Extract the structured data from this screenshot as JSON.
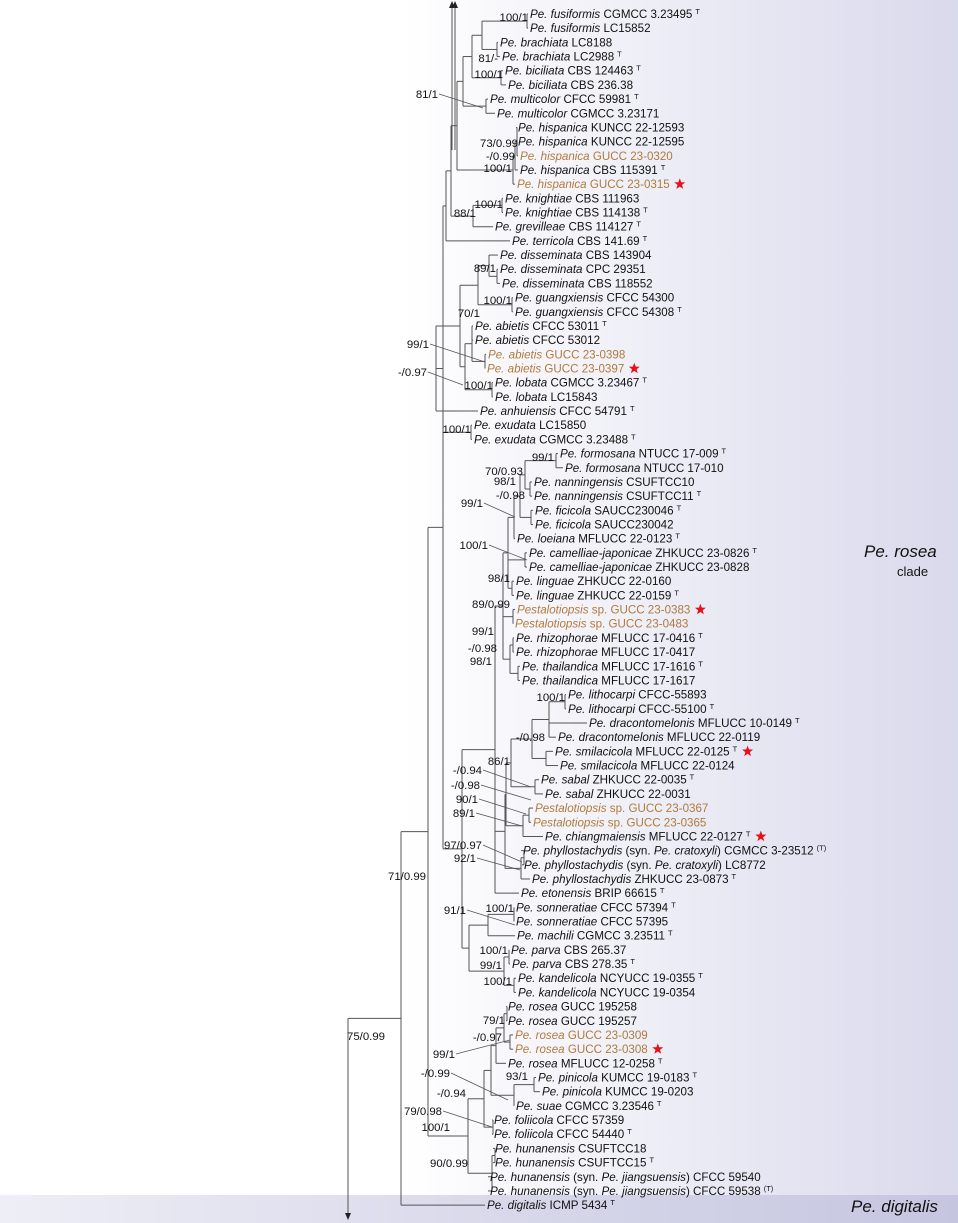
{
  "colors": {
    "new_isolate": "#b07a3e",
    "star": "#e8101a",
    "clade_bg": "#dcdcee",
    "outgroup_bg": "#c9c9e2"
  },
  "clades": {
    "rosea_name": "Pe. rosea",
    "rosea_word": "clade",
    "outgroup_name": "Pe. digitalis"
  },
  "taxa": [
    {
      "parts": [
        "Pe. fusiformis",
        " CGMCC 3.23495"
      ],
      "type": "T"
    },
    {
      "parts": [
        "Pe. fusiformis",
        " LC15852"
      ]
    },
    {
      "parts": [
        "Pe. brachiata",
        " LC8188"
      ]
    },
    {
      "parts": [
        "Pe. brachiata",
        " LC2988"
      ],
      "type": "T"
    },
    {
      "parts": [
        "Pe. biciliata",
        " CBS 124463"
      ],
      "type": "T"
    },
    {
      "parts": [
        "Pe. biciliata",
        " CBS 236.38"
      ]
    },
    {
      "parts": [
        "Pe. multicolor",
        " CFCC 59981"
      ],
      "type": "T"
    },
    {
      "parts": [
        "Pe. multicolor",
        " CGMCC 3.23171"
      ]
    },
    {
      "parts": [
        "Pe. hispanica",
        " KUNCC 22-12593"
      ]
    },
    {
      "parts": [
        "Pe. hispanica",
        " KUNCC 22-12595"
      ]
    },
    {
      "parts": [
        "Pe. hispanica",
        " GUCC 23-0320"
      ],
      "new": true
    },
    {
      "parts": [
        "Pe. hispanica",
        " CBS 115391"
      ],
      "type": "T"
    },
    {
      "parts": [
        "Pe. hispanica",
        " GUCC 23-0315"
      ],
      "new": true,
      "star": true
    },
    {
      "parts": [
        "Pe. knightiae",
        " CBS 111963"
      ]
    },
    {
      "parts": [
        "Pe. knightiae",
        " CBS 114138"
      ],
      "type": "T"
    },
    {
      "parts": [
        "Pe. grevilleae",
        " CBS 114127"
      ],
      "type": "T"
    },
    {
      "parts": [
        "Pe. terricola",
        " CBS 141.69"
      ],
      "type": "T"
    },
    {
      "parts": [
        "Pe. disseminata",
        " CBS 143904"
      ]
    },
    {
      "parts": [
        "Pe. disseminata",
        " CPC 29351"
      ]
    },
    {
      "parts": [
        "Pe. disseminata",
        " CBS 118552"
      ]
    },
    {
      "parts": [
        "Pe. guangxiensis",
        " CFCC 54300"
      ]
    },
    {
      "parts": [
        "Pe. guangxiensis",
        " CFCC 54308"
      ],
      "type": "T"
    },
    {
      "parts": [
        "Pe. abietis",
        " CFCC 53011"
      ],
      "type": "T"
    },
    {
      "parts": [
        "Pe. abietis",
        " CFCC 53012"
      ]
    },
    {
      "parts": [
        "Pe. abietis",
        " GUCC 23-0398"
      ],
      "new": true
    },
    {
      "parts": [
        "Pe. abietis",
        " GUCC 23-0397"
      ],
      "new": true,
      "star": true
    },
    {
      "parts": [
        "Pe. lobata",
        " CGMCC 3.23467"
      ],
      "type": "T"
    },
    {
      "parts": [
        "Pe. lobata",
        " LC15843"
      ]
    },
    {
      "parts": [
        "Pe. anhuiensis",
        " CFCC 54791"
      ],
      "type": "T"
    },
    {
      "parts": [
        "Pe. exudata",
        " LC15850"
      ]
    },
    {
      "parts": [
        "Pe. exudata",
        " CGMCC 3.23488"
      ],
      "type": "T"
    },
    {
      "parts": [
        "Pe. formosana",
        " NTUCC 17-009"
      ],
      "type": "T"
    },
    {
      "parts": [
        "Pe. formosana",
        " NTUCC 17-010"
      ]
    },
    {
      "parts": [
        "Pe. nanningensis",
        " CSUFTCC10"
      ]
    },
    {
      "parts": [
        "Pe. nanningensis",
        " CSUFTCC11"
      ],
      "type": "T"
    },
    {
      "parts": [
        "Pe. ficicola",
        " SAUCC230046"
      ],
      "type": "T"
    },
    {
      "parts": [
        "Pe. ficicola",
        " SAUCC230042"
      ]
    },
    {
      "parts": [
        "Pe. loeiana",
        " MFLUCC 22-0123"
      ],
      "type": "T"
    },
    {
      "parts": [
        "Pe. camelliae-japonicae",
        " ZHKUCC 23-0826"
      ],
      "type": "T"
    },
    {
      "parts": [
        "Pe. camelliae-japonicae",
        " ZHKUCC 23-0828"
      ]
    },
    {
      "parts": [
        "Pe. linguae",
        " ZHKUCC 22-0160"
      ]
    },
    {
      "parts": [
        "Pe. linguae",
        " ZHKUCC 22-0159"
      ],
      "type": "T"
    },
    {
      "parts": [
        "Pestalotiopsis",
        " sp. GUCC 23-0383"
      ],
      "new": true,
      "star": true
    },
    {
      "parts": [
        "Pestalotiopsis",
        " sp. GUCC 23-0483"
      ],
      "new": true
    },
    {
      "parts": [
        "Pe. rhizophorae",
        " MFLUCC 17-0416"
      ],
      "type": "T"
    },
    {
      "parts": [
        "Pe. rhizophorae",
        " MFLUCC 17-0417"
      ]
    },
    {
      "parts": [
        "Pe. thailandica",
        " MFLUCC 17-1616"
      ],
      "type": "T"
    },
    {
      "parts": [
        "Pe. thailandica",
        " MFLUCC 17-1617"
      ]
    },
    {
      "parts": [
        "Pe. lithocarpi",
        " CFCC-55893"
      ]
    },
    {
      "parts": [
        "Pe. lithocarpi",
        " CFCC-55100"
      ],
      "type": "T"
    },
    {
      "parts": [
        "Pe. dracontomelonis",
        " MFLUCC 10-0149"
      ],
      "type": "T"
    },
    {
      "parts": [
        "Pe. dracontomelonis",
        " MFLUCC 22-0119"
      ]
    },
    {
      "parts": [
        "Pe. smilacicola",
        " MFLUCC 22-0125"
      ],
      "type": "T",
      "star": true
    },
    {
      "parts": [
        "Pe. smilacicola",
        " MFLUCC 22-0124"
      ]
    },
    {
      "parts": [
        "Pe. sabal",
        " ZHKUCC 22-0035"
      ],
      "type": "T"
    },
    {
      "parts": [
        "Pe. sabal",
        " ZHKUCC 22-0031"
      ]
    },
    {
      "parts": [
        "Pestalotiopsis",
        " sp. GUCC 23-0367"
      ],
      "new": true
    },
    {
      "parts": [
        "Pestalotiopsis",
        " sp. GUCC 23-0365"
      ],
      "new": true
    },
    {
      "parts": [
        "Pe. chiangmaiensis",
        " MFLUCC 22-0127"
      ],
      "type": "T",
      "star": true
    },
    {
      "parts": [
        "Pe. phyllostachydis",
        " (syn. ",
        "Pe. cratoxyli",
        ") CGMCC 3-23512"
      ],
      "type": "(T)"
    },
    {
      "parts": [
        "Pe. phyllostachydis",
        " (syn. ",
        "Pe. cratoxyli",
        ") LC8772"
      ]
    },
    {
      "parts": [
        "Pe. phyllostachydis",
        " ZHKUCC 23-0873"
      ],
      "type": "T"
    },
    {
      "parts": [
        "Pe. etonensis",
        " BRIP 66615"
      ],
      "type": "T"
    },
    {
      "parts": [
        "Pe. sonneratiae",
        " CFCC 57394"
      ],
      "type": "T"
    },
    {
      "parts": [
        "Pe. sonneratiae",
        " CFCC 57395"
      ]
    },
    {
      "parts": [
        "Pe. machili",
        " CGMCC 3.23511"
      ],
      "type": "T"
    },
    {
      "parts": [
        "Pe. parva",
        " CBS 265.37"
      ]
    },
    {
      "parts": [
        "Pe. parva",
        " CBS 278.35"
      ],
      "type": "T"
    },
    {
      "parts": [
        "Pe. kandelicola",
        " NCYUCC 19-0355"
      ],
      "type": "T"
    },
    {
      "parts": [
        "Pe. kandelicola",
        " NCYUCC 19-0354"
      ]
    },
    {
      "parts": [
        "Pe. rosea",
        " GUCC 195258"
      ]
    },
    {
      "parts": [
        "Pe. rosea",
        " GUCC 195257"
      ]
    },
    {
      "parts": [
        "Pe. rosea",
        " GUCC 23-0309"
      ],
      "new": true
    },
    {
      "parts": [
        "Pe. rosea",
        " GUCC 23-0308"
      ],
      "new": true,
      "star": true
    },
    {
      "parts": [
        "Pe. rosea",
        " MFLUCC 12-0258"
      ],
      "type": "T"
    },
    {
      "parts": [
        "Pe. pinicola",
        " KUMCC 19-0183"
      ],
      "type": "T"
    },
    {
      "parts": [
        "Pe. pinicola",
        " KUMCC 19-0203"
      ]
    },
    {
      "parts": [
        "Pe. suae",
        " CGMCC 3.23546"
      ],
      "type": "T"
    },
    {
      "parts": [
        "Pe. foliicola",
        " CFCC 57359"
      ]
    },
    {
      "parts": [
        "Pe. foliicola",
        " CFCC 54440"
      ],
      "type": "T"
    },
    {
      "parts": [
        "Pe. hunanensis",
        " CSUFTCC18"
      ]
    },
    {
      "parts": [
        "Pe. hunanensis",
        " CSUFTCC15"
      ],
      "type": "T"
    },
    {
      "parts": [
        "Pe. hunanensis",
        " (syn. ",
        "Pe. jiangsuensis",
        ") CFCC 59540"
      ]
    },
    {
      "parts": [
        "Pe. hunanensis",
        " (syn. ",
        "Pe. jiangsuensis",
        ") CFCC 59538"
      ],
      "type": "(T)"
    },
    {
      "parts": [
        "Pe. digitalis",
        " ICMP 5434"
      ],
      "type": "T"
    }
  ],
  "supports": [
    "100/1",
    "81/-",
    "100/1",
    "81/1",
    "73/0.99",
    "-/0.99",
    "100/1",
    "100/1",
    "88/1",
    "89/1",
    "70/1",
    "100/1",
    "99/1",
    "-/0.97",
    "100/1",
    "100/1",
    "99/1",
    "70/0.93",
    "98/1",
    "-/0.98",
    "99/1",
    "100/1",
    "98/1",
    "89/0.99",
    "99/1",
    "-/0.98",
    "98/1",
    "100/1",
    "-/0.98",
    "86/1",
    "-/0.94",
    "-/0.98",
    "90/1",
    "89/1",
    "97/0.97",
    "92/1",
    "71/0.99",
    "91/1",
    "100/1",
    "100/1",
    "99/1",
    "100/1",
    "79/1",
    "-/0.97",
    "99/1",
    "-/0.99",
    "93/1",
    "-/0.94",
    "79/0.98",
    "100/1",
    "90/0.99",
    "75/0.99"
  ]
}
